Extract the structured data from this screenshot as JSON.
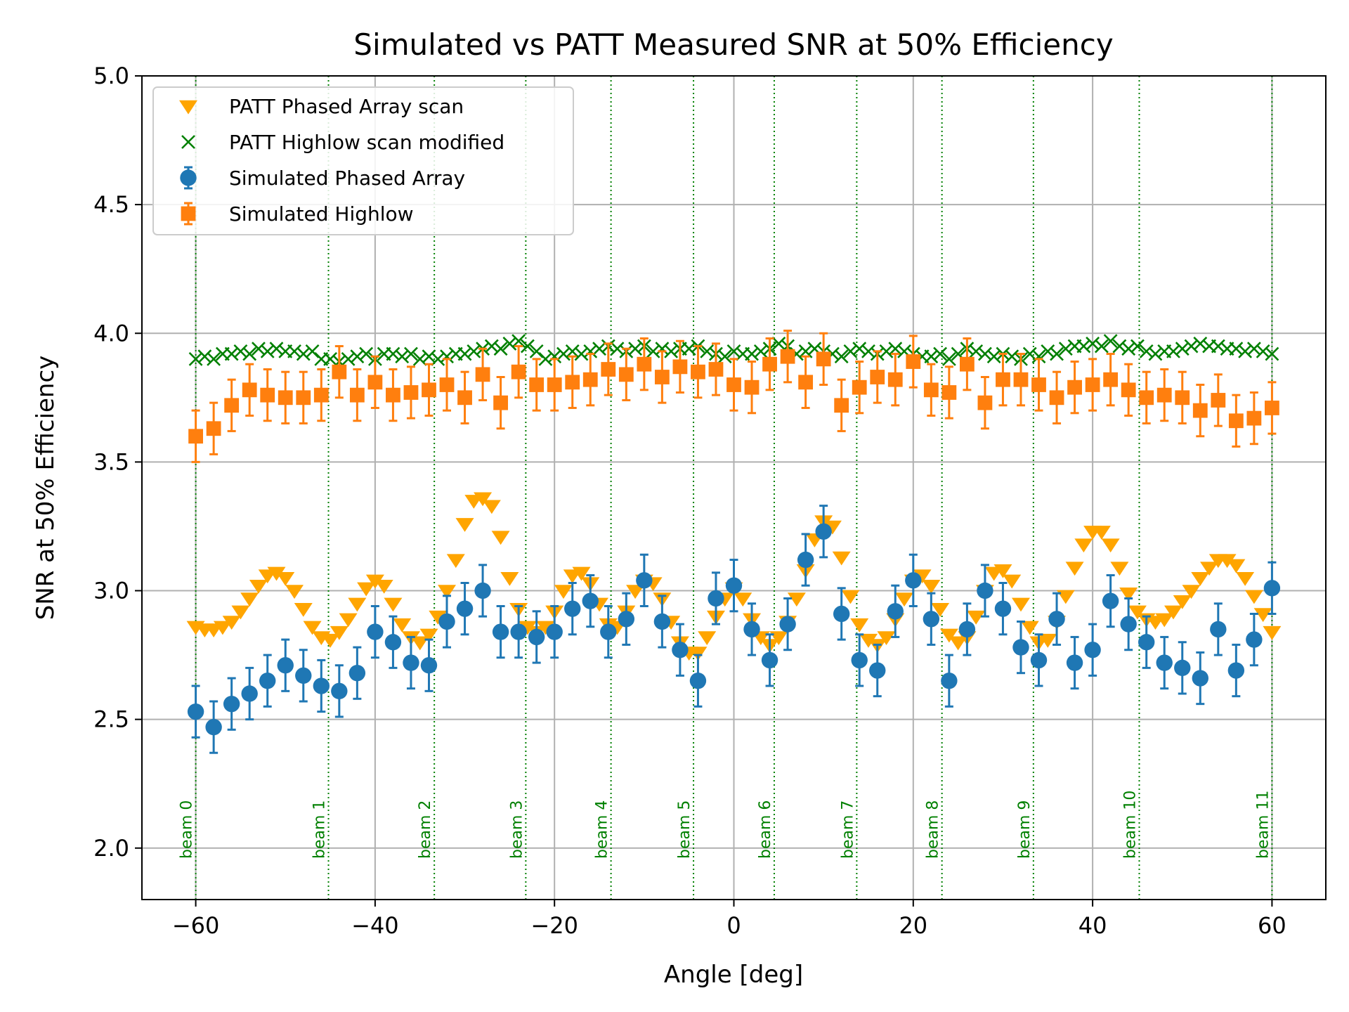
{
  "chart_data": {
    "type": "scatter",
    "title": "Simulated vs PATT Measured SNR at 50% Efficiency",
    "xlabel": "Angle [deg]",
    "ylabel": "SNR at 50% Efficiency",
    "xlim": [
      -66,
      66
    ],
    "ylim": [
      1.8,
      5.0
    ],
    "xticks": [
      -60,
      -40,
      -20,
      0,
      20,
      40,
      60
    ],
    "xtick_labels": [
      "−60",
      "−40",
      "−20",
      "0",
      "20",
      "40",
      "60"
    ],
    "yticks": [
      2.0,
      2.5,
      3.0,
      3.5,
      4.0,
      4.5,
      5.0
    ],
    "ytick_labels": [
      "2.0",
      "2.5",
      "3.0",
      "3.5",
      "4.0",
      "4.5",
      "5.0"
    ],
    "grid": true,
    "legend_position": "top-left",
    "beams": [
      {
        "label": "beam 0",
        "angle": -60.0
      },
      {
        "label": "beam 1",
        "angle": -45.2
      },
      {
        "label": "beam 2",
        "angle": -33.4
      },
      {
        "label": "beam 3",
        "angle": -23.2
      },
      {
        "label": "beam 4",
        "angle": -13.7
      },
      {
        "label": "beam 5",
        "angle": -4.5
      },
      {
        "label": "beam 6",
        "angle": 4.5
      },
      {
        "label": "beam 7",
        "angle": 13.7
      },
      {
        "label": "beam 8",
        "angle": 23.2
      },
      {
        "label": "beam 9",
        "angle": 33.4
      },
      {
        "label": "beam 10",
        "angle": 45.2
      },
      {
        "label": "beam 11",
        "angle": 60.0
      }
    ],
    "beam_color": "#008000",
    "series": [
      {
        "name": "PATT Phased Array scan",
        "marker": "triangle-down",
        "color": "#ffa500",
        "x": [
          -60,
          -59,
          -58,
          -57,
          -56,
          -55,
          -54,
          -53,
          -52,
          -51,
          -50,
          -49,
          -48,
          -47,
          -46,
          -45,
          -44,
          -43,
          -42,
          -41,
          -40,
          -39,
          -38,
          -37,
          -36,
          -35,
          -34,
          -33,
          -32,
          -31,
          -30,
          -29,
          -28,
          -27,
          -26,
          -25,
          -24,
          -23,
          -22,
          -21,
          -20,
          -19,
          -18,
          -17,
          -16,
          -15,
          -14,
          -13,
          -12,
          -11,
          -10,
          -9,
          -8,
          -7,
          -6,
          -5,
          -4,
          -3,
          -2,
          -1,
          0,
          1,
          2,
          3,
          4,
          5,
          6,
          7,
          8,
          9,
          10,
          11,
          12,
          13,
          14,
          15,
          16,
          17,
          18,
          19,
          20,
          21,
          22,
          23,
          24,
          25,
          26,
          27,
          28,
          29,
          30,
          31,
          32,
          33,
          34,
          35,
          36,
          37,
          38,
          39,
          40,
          41,
          42,
          43,
          44,
          45,
          46,
          47,
          48,
          49,
          50,
          51,
          52,
          53,
          54,
          55,
          56,
          57,
          58,
          59,
          60
        ],
        "y": [
          2.86,
          2.85,
          2.85,
          2.86,
          2.88,
          2.92,
          2.97,
          3.02,
          3.06,
          3.07,
          3.05,
          3.0,
          2.93,
          2.86,
          2.82,
          2.81,
          2.84,
          2.89,
          2.95,
          3.01,
          3.04,
          3.02,
          2.95,
          2.87,
          2.82,
          2.8,
          2.83,
          2.9,
          3.0,
          3.12,
          3.26,
          3.35,
          3.36,
          3.33,
          3.21,
          3.05,
          2.93,
          2.86,
          2.84,
          2.86,
          2.92,
          3.0,
          3.06,
          3.07,
          3.03,
          2.95,
          2.87,
          2.86,
          2.92,
          3.0,
          3.04,
          3.03,
          2.97,
          2.88,
          2.8,
          2.76,
          2.76,
          2.82,
          2.9,
          2.97,
          3.01,
          2.97,
          2.89,
          2.82,
          2.79,
          2.82,
          2.88,
          2.97,
          3.08,
          3.2,
          3.27,
          3.25,
          3.13,
          2.98,
          2.87,
          2.81,
          2.79,
          2.82,
          2.89,
          2.97,
          3.04,
          3.06,
          3.02,
          2.93,
          2.83,
          2.8,
          2.82,
          2.9,
          3.0,
          3.07,
          3.08,
          3.04,
          2.95,
          2.86,
          2.8,
          2.81,
          2.88,
          2.98,
          3.09,
          3.18,
          3.23,
          3.23,
          3.18,
          3.09,
          2.99,
          2.92,
          2.89,
          2.88,
          2.89,
          2.92,
          2.96,
          3.0,
          3.05,
          3.09,
          3.12,
          3.12,
          3.1,
          3.05,
          2.98,
          2.91,
          2.84
        ]
      },
      {
        "name": "PATT Highlow scan modified",
        "marker": "x",
        "color": "#008000",
        "x": [
          -60,
          -59,
          -58,
          -57,
          -56,
          -55,
          -54,
          -53,
          -52,
          -51,
          -50,
          -49,
          -48,
          -47,
          -46,
          -45,
          -44,
          -43,
          -42,
          -41,
          -40,
          -39,
          -38,
          -37,
          -36,
          -35,
          -34,
          -33,
          -32,
          -31,
          -30,
          -29,
          -28,
          -27,
          -26,
          -25,
          -24,
          -23,
          -22,
          -21,
          -20,
          -19,
          -18,
          -17,
          -16,
          -15,
          -14,
          -13,
          -12,
          -11,
          -10,
          -9,
          -8,
          -7,
          -6,
          -5,
          -4,
          -3,
          -2,
          -1,
          0,
          1,
          2,
          3,
          4,
          5,
          6,
          7,
          8,
          9,
          10,
          11,
          12,
          13,
          14,
          15,
          16,
          17,
          18,
          19,
          20,
          21,
          22,
          23,
          24,
          25,
          26,
          27,
          28,
          29,
          30,
          31,
          32,
          33,
          34,
          35,
          36,
          37,
          38,
          39,
          40,
          41,
          42,
          43,
          44,
          45,
          46,
          47,
          48,
          49,
          50,
          51,
          52,
          53,
          54,
          55,
          56,
          57,
          58,
          59,
          60
        ],
        "y": [
          3.9,
          3.91,
          3.9,
          3.92,
          3.92,
          3.93,
          3.92,
          3.94,
          3.93,
          3.94,
          3.93,
          3.93,
          3.92,
          3.93,
          3.9,
          3.9,
          3.89,
          3.9,
          3.91,
          3.92,
          3.9,
          3.92,
          3.92,
          3.91,
          3.92,
          3.9,
          3.91,
          3.9,
          3.91,
          3.92,
          3.92,
          3.93,
          3.94,
          3.95,
          3.94,
          3.96,
          3.97,
          3.95,
          3.93,
          3.9,
          3.91,
          3.92,
          3.93,
          3.92,
          3.93,
          3.94,
          3.95,
          3.94,
          3.93,
          3.94,
          3.95,
          3.93,
          3.94,
          3.93,
          3.94,
          3.94,
          3.95,
          3.93,
          3.92,
          3.91,
          3.93,
          3.92,
          3.92,
          3.93,
          3.94,
          3.96,
          3.95,
          3.92,
          3.93,
          3.94,
          3.93,
          3.92,
          3.91,
          3.93,
          3.94,
          3.93,
          3.92,
          3.93,
          3.94,
          3.93,
          3.92,
          3.91,
          3.91,
          3.92,
          3.9,
          3.92,
          3.94,
          3.93,
          3.92,
          3.91,
          3.92,
          3.91,
          3.9,
          3.92,
          3.91,
          3.93,
          3.92,
          3.94,
          3.95,
          3.95,
          3.96,
          3.95,
          3.97,
          3.95,
          3.94,
          3.95,
          3.93,
          3.92,
          3.93,
          3.93,
          3.94,
          3.95,
          3.96,
          3.95,
          3.95,
          3.94,
          3.94,
          3.93,
          3.94,
          3.93,
          3.92
        ]
      },
      {
        "name": "Simulated Phased Array",
        "marker": "circle",
        "color": "#1f77b4",
        "x": [
          -60,
          -58,
          -56,
          -54,
          -52,
          -50,
          -48,
          -46,
          -44,
          -42,
          -40,
          -38,
          -36,
          -34,
          -32,
          -30,
          -28,
          -26,
          -24,
          -22,
          -20,
          -18,
          -16,
          -14,
          -12,
          -10,
          -8,
          -6,
          -4,
          -2,
          0,
          2,
          4,
          6,
          8,
          10,
          12,
          14,
          16,
          18,
          20,
          22,
          24,
          26,
          28,
          30,
          32,
          34,
          36,
          38,
          40,
          42,
          44,
          46,
          48,
          50,
          52,
          54,
          56,
          58,
          60
        ],
        "y": [
          2.53,
          2.47,
          2.56,
          2.6,
          2.65,
          2.71,
          2.67,
          2.63,
          2.61,
          2.68,
          2.84,
          2.8,
          2.72,
          2.71,
          2.88,
          2.93,
          3.0,
          2.84,
          2.84,
          2.82,
          2.84,
          2.93,
          2.96,
          2.84,
          2.89,
          3.04,
          2.88,
          2.77,
          2.65,
          2.97,
          3.02,
          2.85,
          2.73,
          2.87,
          3.12,
          3.23,
          2.91,
          2.73,
          2.69,
          2.92,
          3.04,
          2.89,
          2.65,
          2.85,
          3.0,
          2.93,
          2.78,
          2.73,
          2.89,
          2.72,
          2.77,
          2.96,
          2.87,
          2.8,
          2.72,
          2.7,
          2.66,
          2.85,
          2.69,
          2.81,
          3.01
        ],
        "error": [
          0.1,
          0.1,
          0.1,
          0.1,
          0.1,
          0.1,
          0.1,
          0.1,
          0.1,
          0.1,
          0.1,
          0.1,
          0.1,
          0.1,
          0.1,
          0.1,
          0.1,
          0.1,
          0.1,
          0.1,
          0.1,
          0.1,
          0.1,
          0.1,
          0.1,
          0.1,
          0.1,
          0.1,
          0.1,
          0.1,
          0.1,
          0.1,
          0.1,
          0.1,
          0.1,
          0.1,
          0.1,
          0.1,
          0.1,
          0.1,
          0.1,
          0.1,
          0.1,
          0.1,
          0.1,
          0.1,
          0.1,
          0.1,
          0.1,
          0.1,
          0.1,
          0.1,
          0.1,
          0.1,
          0.1,
          0.1,
          0.1,
          0.1,
          0.1,
          0.1,
          0.1
        ]
      },
      {
        "name": "Simulated Highlow",
        "marker": "square",
        "color": "#ff7f0e",
        "x": [
          -60,
          -58,
          -56,
          -54,
          -52,
          -50,
          -48,
          -46,
          -44,
          -42,
          -40,
          -38,
          -36,
          -34,
          -32,
          -30,
          -28,
          -26,
          -24,
          -22,
          -20,
          -18,
          -16,
          -14,
          -12,
          -10,
          -8,
          -6,
          -4,
          -2,
          0,
          2,
          4,
          6,
          8,
          10,
          12,
          14,
          16,
          18,
          20,
          22,
          24,
          26,
          28,
          30,
          32,
          34,
          36,
          38,
          40,
          42,
          44,
          46,
          48,
          50,
          52,
          54,
          56,
          58,
          60
        ],
        "y": [
          3.6,
          3.63,
          3.72,
          3.78,
          3.76,
          3.75,
          3.75,
          3.76,
          3.85,
          3.76,
          3.81,
          3.76,
          3.77,
          3.78,
          3.8,
          3.75,
          3.84,
          3.73,
          3.85,
          3.8,
          3.8,
          3.81,
          3.82,
          3.86,
          3.84,
          3.88,
          3.83,
          3.87,
          3.85,
          3.86,
          3.8,
          3.79,
          3.88,
          3.91,
          3.81,
          3.9,
          3.72,
          3.79,
          3.83,
          3.82,
          3.89,
          3.78,
          3.77,
          3.88,
          3.73,
          3.82,
          3.82,
          3.8,
          3.75,
          3.79,
          3.8,
          3.82,
          3.78,
          3.75,
          3.76,
          3.75,
          3.7,
          3.74,
          3.66,
          3.67,
          3.71
        ],
        "error": [
          0.1,
          0.1,
          0.1,
          0.1,
          0.1,
          0.1,
          0.1,
          0.1,
          0.1,
          0.1,
          0.1,
          0.1,
          0.1,
          0.1,
          0.1,
          0.1,
          0.1,
          0.1,
          0.1,
          0.1,
          0.1,
          0.1,
          0.1,
          0.1,
          0.1,
          0.1,
          0.1,
          0.1,
          0.1,
          0.1,
          0.1,
          0.1,
          0.1,
          0.1,
          0.1,
          0.1,
          0.1,
          0.1,
          0.1,
          0.1,
          0.1,
          0.1,
          0.1,
          0.1,
          0.1,
          0.1,
          0.1,
          0.1,
          0.1,
          0.1,
          0.1,
          0.1,
          0.1,
          0.1,
          0.1,
          0.1,
          0.1,
          0.1,
          0.1,
          0.1,
          0.1
        ]
      }
    ]
  }
}
